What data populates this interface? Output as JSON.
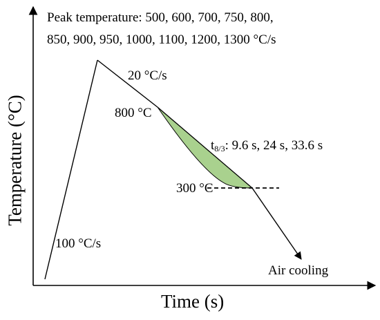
{
  "diagram": {
    "peak_line1": "Peak temperature: 500, 600, 700, 750, 800,",
    "peak_line2": "850, 900, 950, 1000, 1100, 1200, 1300 °C/s",
    "rate_cooling": "20 °C/s",
    "label_800": "800 °C",
    "label_300": "300 °C",
    "t_prefix": "t",
    "t_subscript": "8/3",
    "t_values": ": 9.6 s, 24 s, 33.6 s",
    "rate_heating": "100 °C/s",
    "air_cooling": "Air cooling",
    "ylabel": "Temperature (°C)",
    "xlabel": "Time (s)"
  },
  "colors": {
    "fill": "#a9d18e",
    "line": "#000000"
  }
}
